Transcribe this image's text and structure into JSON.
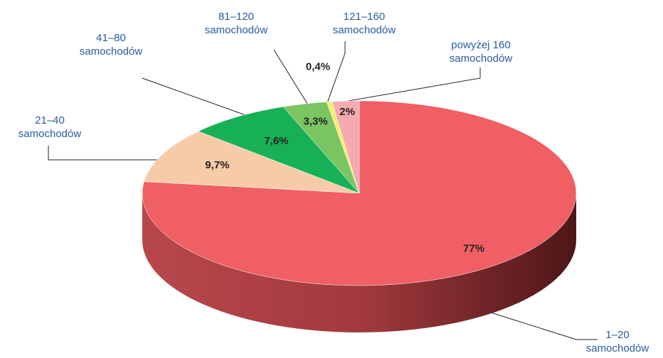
{
  "chart_data": {
    "type": "pie3d",
    "categories": [
      "1–20 samochodów",
      "21–40 samochodów",
      "41–80 samochodów",
      "81–120 samochodów",
      "121–160 samochodów",
      "powyżej 160 samochodów"
    ],
    "values": [
      77,
      9.7,
      7.6,
      3.3,
      0.4,
      2
    ],
    "value_labels": [
      "77%",
      "9,7%",
      "7,6%",
      "3,3%",
      "0,4%",
      "2%"
    ],
    "colors": [
      "#ef5f63",
      "#f6cba8",
      "#17b057",
      "#7ac462",
      "#f4ee6c",
      "#f5aab0"
    ]
  }
}
